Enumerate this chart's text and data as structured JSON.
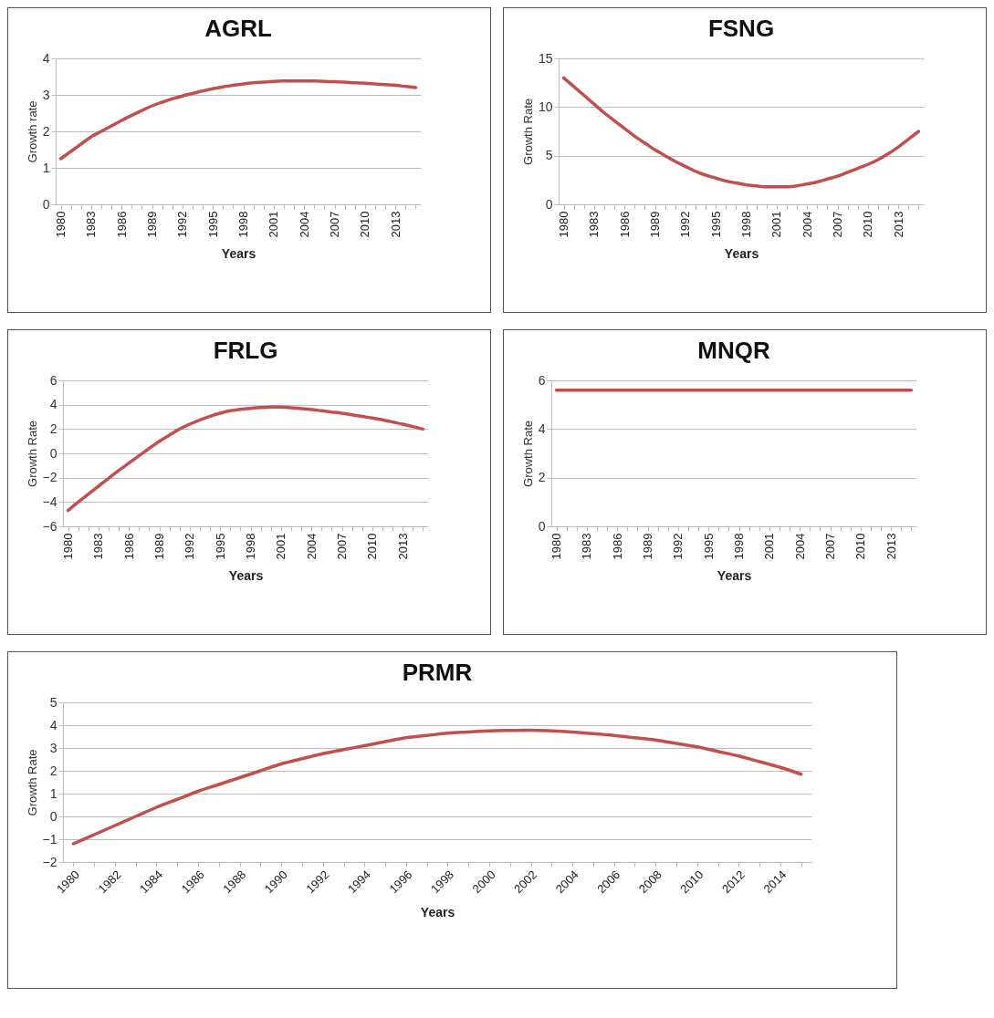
{
  "chart_data": [
    {
      "type": "line",
      "title": "AGRL",
      "xlabel": "Years",
      "ylabel": "Growth rate",
      "categories": [
        "1980",
        null,
        null,
        "1983",
        null,
        null,
        "1986",
        null,
        null,
        "1989",
        null,
        null,
        "1992",
        null,
        null,
        "1995",
        null,
        null,
        "1998",
        null,
        null,
        "2001",
        null,
        null,
        "2004",
        null,
        null,
        "2007",
        null,
        null,
        "2010",
        null,
        null,
        "2013",
        null,
        null
      ],
      "series": [
        {
          "color": "#c0504d",
          "values": [
            1.25,
            1.45,
            1.65,
            1.85,
            2.0,
            2.15,
            2.3,
            2.44,
            2.57,
            2.7,
            2.8,
            2.89,
            2.97,
            3.04,
            3.11,
            3.17,
            3.22,
            3.26,
            3.3,
            3.33,
            3.35,
            3.37,
            3.38,
            3.38,
            3.38,
            3.38,
            3.37,
            3.36,
            3.35,
            3.33,
            3.32,
            3.3,
            3.28,
            3.26,
            3.23,
            3.2
          ]
        }
      ],
      "ylim": [
        0,
        4
      ],
      "yticks": [
        0,
        1,
        2,
        3,
        4
      ],
      "grid": "y"
    },
    {
      "type": "line",
      "title": "FSNG",
      "xlabel": "Years",
      "ylabel": "Growth Rate",
      "categories": [
        "1980",
        null,
        null,
        "1983",
        null,
        null,
        "1986",
        null,
        null,
        "1989",
        null,
        null,
        "1992",
        null,
        null,
        "1995",
        null,
        null,
        "1998",
        null,
        null,
        "2001",
        null,
        null,
        "2004",
        null,
        null,
        "2007",
        null,
        null,
        "2010",
        null,
        null,
        "2013",
        null,
        null
      ],
      "series": [
        {
          "color": "#c0504d",
          "values": [
            13,
            12.1,
            11.2,
            10.3,
            9.4,
            8.6,
            7.8,
            7.0,
            6.3,
            5.6,
            5.0,
            4.4,
            3.9,
            3.4,
            3.0,
            2.7,
            2.4,
            2.2,
            2.0,
            1.9,
            1.8,
            1.8,
            1.8,
            1.9,
            2.1,
            2.3,
            2.6,
            2.9,
            3.3,
            3.7,
            4.1,
            4.6,
            5.2,
            5.9,
            6.7,
            7.5
          ]
        }
      ],
      "ylim": [
        0,
        15
      ],
      "yticks": [
        0,
        5,
        10,
        15
      ],
      "grid": "y"
    },
    {
      "type": "line",
      "title": "FRLG",
      "xlabel": "Years",
      "ylabel": "Growth Rate",
      "categories": [
        "1980",
        null,
        null,
        "1983",
        null,
        null,
        "1986",
        null,
        null,
        "1989",
        null,
        null,
        "1992",
        null,
        null,
        "1995",
        null,
        null,
        "1998",
        null,
        null,
        "2001",
        null,
        null,
        "2004",
        null,
        null,
        "2007",
        null,
        null,
        "2010",
        null,
        null,
        "2013",
        null,
        null
      ],
      "series": [
        {
          "color": "#c0504d",
          "values": [
            -4.7,
            -4.0,
            -3.35,
            -2.7,
            -2.05,
            -1.4,
            -0.8,
            -0.2,
            0.4,
            1.0,
            1.5,
            2.0,
            2.4,
            2.75,
            3.05,
            3.3,
            3.5,
            3.62,
            3.7,
            3.76,
            3.8,
            3.8,
            3.75,
            3.68,
            3.6,
            3.5,
            3.4,
            3.3,
            3.17,
            3.03,
            2.9,
            2.75,
            2.58,
            2.4,
            2.2,
            2.0
          ]
        }
      ],
      "ylim": [
        -6,
        6
      ],
      "yticks": [
        -6,
        -4,
        -2,
        0,
        2,
        4,
        6
      ],
      "grid": "y"
    },
    {
      "type": "line",
      "title": "MNQR",
      "xlabel": "Years",
      "ylabel": "Growth Rate",
      "categories": [
        "1980",
        null,
        null,
        "1983",
        null,
        null,
        "1986",
        null,
        null,
        "1989",
        null,
        null,
        "1992",
        null,
        null,
        "1995",
        null,
        null,
        "1998",
        null,
        null,
        "2001",
        null,
        null,
        "2004",
        null,
        null,
        "2007",
        null,
        null,
        "2010",
        null,
        null,
        "2013",
        null,
        null
      ],
      "series": [
        {
          "color": "#c0504d",
          "values": [
            5.6,
            5.6,
            5.6,
            5.6,
            5.6,
            5.6,
            5.6,
            5.6,
            5.6,
            5.6,
            5.6,
            5.6,
            5.6,
            5.6,
            5.6,
            5.6,
            5.6,
            5.6,
            5.6,
            5.6,
            5.6,
            5.6,
            5.6,
            5.6,
            5.6,
            5.6,
            5.6,
            5.6,
            5.6,
            5.6,
            5.6,
            5.6,
            5.6,
            5.6,
            5.6,
            5.6
          ]
        }
      ],
      "ylim": [
        0,
        6
      ],
      "yticks": [
        0,
        2,
        4,
        6
      ],
      "grid": "y"
    },
    {
      "type": "line",
      "title": "PRMR",
      "xlabel": "Years",
      "ylabel": "Growth Rate",
      "categories": [
        "1980",
        null,
        "1982",
        null,
        "1984",
        null,
        "1986",
        null,
        "1988",
        null,
        "1990",
        null,
        "1992",
        null,
        "1994",
        null,
        "1996",
        null,
        "1998",
        null,
        "2000",
        null,
        "2002",
        null,
        "2004",
        null,
        "2006",
        null,
        "2008",
        null,
        "2010",
        null,
        "2012",
        null,
        "2014",
        null
      ],
      "series": [
        {
          "color": "#c0504d",
          "values": [
            -1.2,
            -0.8,
            -0.4,
            0.0,
            0.4,
            0.75,
            1.1,
            1.4,
            1.7,
            2.0,
            2.3,
            2.53,
            2.75,
            2.93,
            3.1,
            3.28,
            3.45,
            3.55,
            3.65,
            3.7,
            3.75,
            3.77,
            3.78,
            3.75,
            3.7,
            3.63,
            3.55,
            3.45,
            3.35,
            3.2,
            3.05,
            2.85,
            2.65,
            2.4,
            2.15,
            1.85
          ]
        }
      ],
      "ylim": [
        -2,
        5
      ],
      "yticks": [
        -2,
        -1,
        0,
        1,
        2,
        3,
        4,
        5
      ],
      "grid": "y"
    }
  ]
}
